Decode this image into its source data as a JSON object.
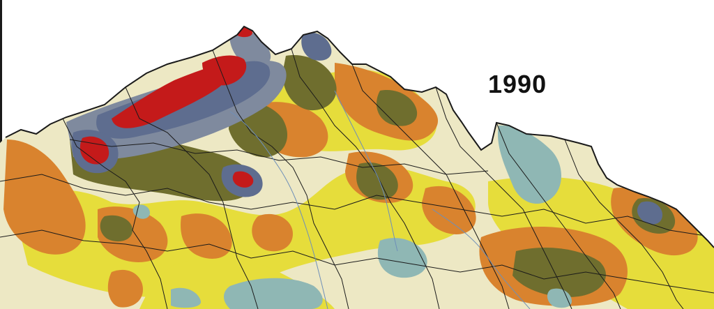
{
  "map": {
    "year_label": "1990",
    "legend_colors": {
      "very_high": "#c41a1a",
      "high": "#5e6d8f",
      "elevated": "#7f8a9e",
      "medium_high": "#6f6e2e",
      "medium": "#d9832e",
      "moderate": "#e6dd3b",
      "low": "#ede8c4",
      "very_low": "#8fb7b4"
    },
    "border_color": "#1a1a1a",
    "river_color": "#6e8fb8"
  }
}
